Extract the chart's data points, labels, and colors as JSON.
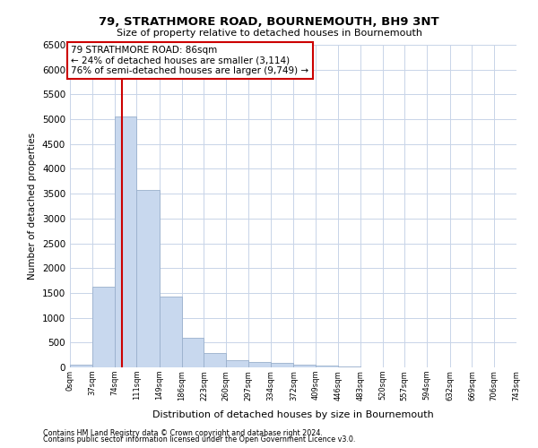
{
  "title_line1": "79, STRATHMORE ROAD, BOURNEMOUTH, BH9 3NT",
  "title_line2": "Size of property relative to detached houses in Bournemouth",
  "xlabel": "Distribution of detached houses by size in Bournemouth",
  "ylabel": "Number of detached properties",
  "bar_color": "#c8d8ee",
  "bar_edge_color": "#9ab0cc",
  "vline_x": 86,
  "vline_color": "#cc0000",
  "annotation_title": "79 STRATHMORE ROAD: 86sqm",
  "annotation_line2": "← 24% of detached houses are smaller (3,114)",
  "annotation_line3": "76% of semi-detached houses are larger (9,749) →",
  "annotation_box_color": "#cc0000",
  "bin_edges": [
    0,
    37,
    74,
    111,
    149,
    186,
    223,
    260,
    297,
    334,
    372,
    409,
    446,
    483,
    520,
    557,
    594,
    632,
    669,
    706,
    743
  ],
  "bar_heights": [
    50,
    1630,
    5050,
    3580,
    1430,
    600,
    280,
    145,
    115,
    85,
    55,
    35,
    15,
    8,
    5,
    3,
    2,
    2,
    1,
    1
  ],
  "ylim": [
    0,
    6500
  ],
  "yticks": [
    0,
    500,
    1000,
    1500,
    2000,
    2500,
    3000,
    3500,
    4000,
    4500,
    5000,
    5500,
    6000,
    6500
  ],
  "footnote1": "Contains HM Land Registry data © Crown copyright and database right 2024.",
  "footnote2": "Contains public sector information licensed under the Open Government Licence v3.0.",
  "bg_color": "#ffffff",
  "grid_color": "#c8d4e8"
}
